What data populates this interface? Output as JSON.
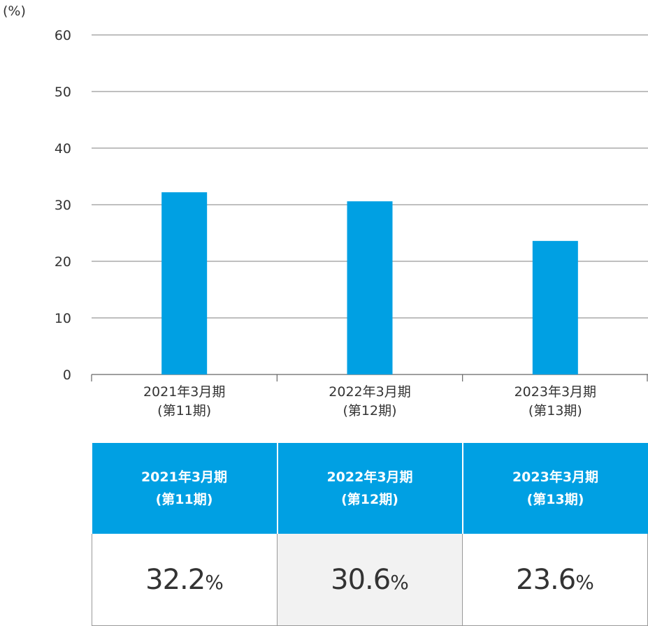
{
  "chart_data": {
    "type": "bar",
    "unit_label": "(%)",
    "categories": [
      [
        "2021年3月期",
        "(第11期)"
      ],
      [
        "2022年3月期",
        "(第12期)"
      ],
      [
        "2023年3月期",
        "(第13期)"
      ]
    ],
    "values": [
      32.2,
      30.6,
      23.6
    ],
    "ylim": [
      0,
      60
    ],
    "yticks": [
      0,
      10,
      20,
      30,
      40,
      50,
      60
    ],
    "grid": true,
    "bar_color": "#00a0e3",
    "grid_color": "#999999"
  },
  "table": {
    "header_color": "#00a0e3",
    "headers": [
      {
        "line1": "2021年3月期",
        "line2": "(第11期)"
      },
      {
        "line1": "2022年3月期",
        "line2": "(第12期)"
      },
      {
        "line1": "2023年3月期",
        "line2": "(第13期)"
      }
    ],
    "cells": [
      {
        "value": "32.2",
        "unit": "%"
      },
      {
        "value": "30.6",
        "unit": "%"
      },
      {
        "value": "23.6",
        "unit": "%"
      }
    ]
  }
}
